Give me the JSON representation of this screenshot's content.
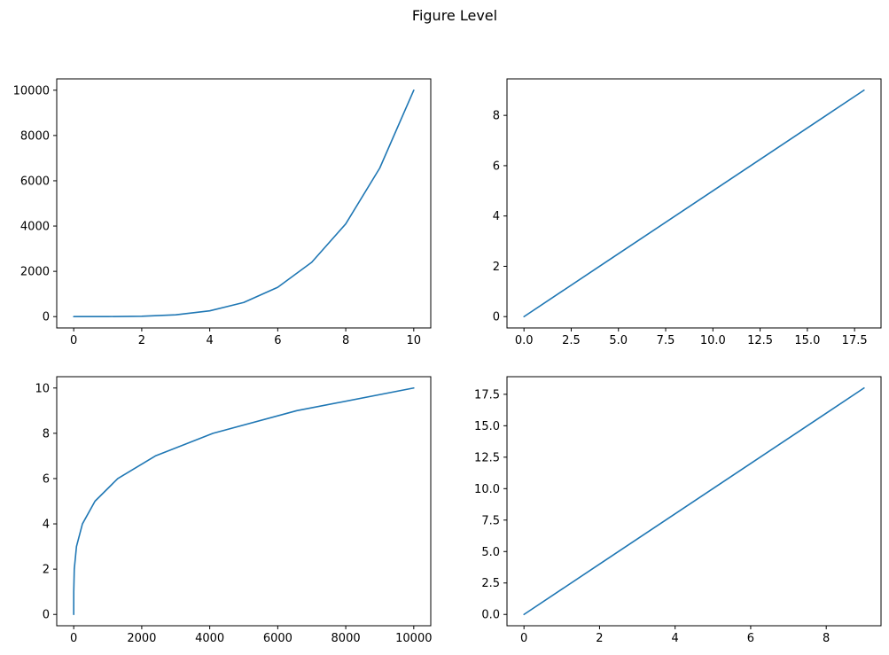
{
  "figure": {
    "title": "Figure Level"
  },
  "chart_data": [
    {
      "type": "line",
      "title": "",
      "xlabel": "",
      "ylabel": "",
      "xlim": [
        -0.5,
        10.5
      ],
      "ylim": [
        -500,
        10500
      ],
      "xticks": [
        0,
        2,
        4,
        6,
        8,
        10
      ],
      "xtick_labels": [
        "0",
        "2",
        "4",
        "6",
        "8",
        "10"
      ],
      "yticks": [
        0,
        2000,
        4000,
        6000,
        8000,
        10000
      ],
      "ytick_labels": [
        "0",
        "2000",
        "4000",
        "6000",
        "8000",
        "10000"
      ],
      "grid": false,
      "series": [
        {
          "color": "#1f77b4",
          "x": [
            0,
            1,
            2,
            3,
            4,
            5,
            6,
            7,
            8,
            9,
            10
          ],
          "y": [
            0,
            1,
            16,
            81,
            256,
            625,
            1296,
            2401,
            4096,
            6561,
            10000
          ]
        }
      ]
    },
    {
      "type": "line",
      "title": "",
      "xlabel": "",
      "ylabel": "",
      "xlim": [
        -0.9,
        18.9
      ],
      "ylim": [
        -0.45,
        9.45
      ],
      "xticks": [
        0,
        2.5,
        5,
        7.5,
        10,
        12.5,
        15,
        17.5
      ],
      "xtick_labels": [
        "0.0",
        "2.5",
        "5.0",
        "7.5",
        "10.0",
        "12.5",
        "15.0",
        "17.5"
      ],
      "yticks": [
        0,
        2,
        4,
        6,
        8
      ],
      "ytick_labels": [
        "0",
        "2",
        "4",
        "6",
        "8"
      ],
      "grid": false,
      "series": [
        {
          "color": "#1f77b4",
          "x": [
            0,
            2,
            4,
            6,
            8,
            10,
            12,
            14,
            16,
            18
          ],
          "y": [
            0,
            1,
            2,
            3,
            4,
            5,
            6,
            7,
            8,
            9
          ]
        }
      ]
    },
    {
      "type": "line",
      "title": "",
      "xlabel": "",
      "ylabel": "",
      "xlim": [
        -500,
        10500
      ],
      "ylim": [
        -0.5,
        10.5
      ],
      "xticks": [
        0,
        2000,
        4000,
        6000,
        8000,
        10000
      ],
      "xtick_labels": [
        "0",
        "2000",
        "4000",
        "6000",
        "8000",
        "10000"
      ],
      "yticks": [
        0,
        2,
        4,
        6,
        8,
        10
      ],
      "ytick_labels": [
        "0",
        "2",
        "4",
        "6",
        "8",
        "10"
      ],
      "grid": false,
      "series": [
        {
          "color": "#1f77b4",
          "x": [
            0,
            1,
            16,
            81,
            256,
            625,
            1296,
            2401,
            4096,
            6561,
            10000
          ],
          "y": [
            0,
            1,
            2,
            3,
            4,
            5,
            6,
            7,
            8,
            9,
            10
          ]
        }
      ]
    },
    {
      "type": "line",
      "title": "",
      "xlabel": "",
      "ylabel": "",
      "xlim": [
        -0.45,
        9.45
      ],
      "ylim": [
        -0.9,
        18.9
      ],
      "xticks": [
        0,
        2,
        4,
        6,
        8
      ],
      "xtick_labels": [
        "0",
        "2",
        "4",
        "6",
        "8"
      ],
      "yticks": [
        0,
        2.5,
        5,
        7.5,
        10,
        12.5,
        15,
        17.5
      ],
      "ytick_labels": [
        "0.0",
        "2.5",
        "5.0",
        "7.5",
        "10.0",
        "12.5",
        "15.0",
        "17.5"
      ],
      "grid": false,
      "series": [
        {
          "color": "#1f77b4",
          "x": [
            0,
            1,
            2,
            3,
            4,
            5,
            6,
            7,
            8,
            9
          ],
          "y": [
            0,
            2,
            4,
            6,
            8,
            10,
            12,
            14,
            16,
            18
          ]
        }
      ]
    }
  ]
}
